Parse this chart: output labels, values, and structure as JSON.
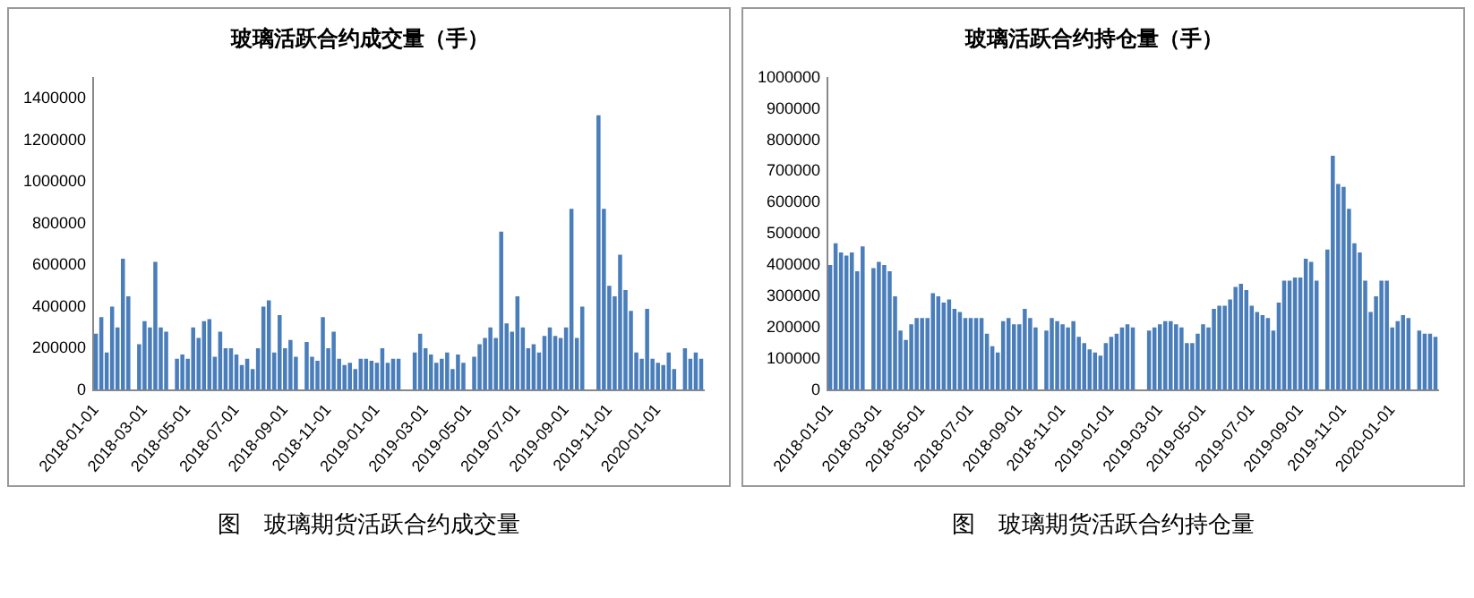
{
  "chart_data": [
    {
      "type": "bar",
      "title": "玻璃活跃合约成交量（手）",
      "color": "#4a7ebb",
      "ylim": [
        0,
        1500000
      ],
      "yticks": [
        0,
        200000,
        400000,
        600000,
        800000,
        1000000,
        1200000,
        1400000
      ],
      "annotations": [
        "图　玻璃期货活跃合约成交量"
      ],
      "categories": [
        "2018-01-01",
        null,
        null,
        null,
        null,
        null,
        null,
        null,
        null,
        "2018-03-01",
        null,
        null,
        null,
        null,
        null,
        null,
        null,
        "2018-05-01",
        null,
        null,
        null,
        null,
        null,
        null,
        null,
        null,
        "2018-07-01",
        null,
        null,
        null,
        null,
        null,
        null,
        null,
        null,
        "2018-09-01",
        null,
        null,
        null,
        null,
        null,
        null,
        null,
        "2018-11-01",
        null,
        null,
        null,
        null,
        null,
        null,
        null,
        null,
        "2019-01-01",
        null,
        null,
        null,
        null,
        null,
        null,
        null,
        null,
        "2019-03-01",
        null,
        null,
        null,
        null,
        null,
        null,
        null,
        "2019-05-01",
        null,
        null,
        null,
        null,
        null,
        null,
        null,
        null,
        "2019-07-01",
        null,
        null,
        null,
        null,
        null,
        null,
        null,
        null,
        "2019-09-01",
        null,
        null,
        null,
        null,
        null,
        null,
        null,
        "2019-11-01",
        null,
        null,
        null,
        null,
        null,
        null,
        null,
        null,
        "2020-01-01",
        null,
        null,
        null,
        null,
        null,
        null,
        null,
        null
      ],
      "values": [
        270000,
        350000,
        180000,
        400000,
        300000,
        630000,
        450000,
        null,
        220000,
        330000,
        300000,
        615000,
        300000,
        280000,
        null,
        150000,
        170000,
        150000,
        300000,
        250000,
        330000,
        340000,
        160000,
        280000,
        200000,
        200000,
        170000,
        120000,
        150000,
        100000,
        200000,
        400000,
        430000,
        180000,
        360000,
        200000,
        240000,
        160000,
        null,
        230000,
        160000,
        140000,
        350000,
        200000,
        280000,
        150000,
        120000,
        130000,
        100000,
        150000,
        150000,
        140000,
        130000,
        200000,
        130000,
        150000,
        150000,
        null,
        null,
        180000,
        270000,
        200000,
        170000,
        130000,
        150000,
        180000,
        100000,
        170000,
        130000,
        null,
        160000,
        220000,
        250000,
        300000,
        250000,
        760000,
        320000,
        280000,
        450000,
        300000,
        200000,
        220000,
        180000,
        260000,
        300000,
        260000,
        250000,
        300000,
        870000,
        250000,
        400000,
        null,
        null,
        1320000,
        870000,
        500000,
        450000,
        650000,
        480000,
        380000,
        180000,
        150000,
        390000,
        150000,
        130000,
        120000,
        180000,
        100000,
        null,
        200000,
        150000,
        180000,
        150000
      ]
    },
    {
      "type": "bar",
      "title": "玻璃活跃合约持仓量（手）",
      "color": "#4a7ebb",
      "ylim": [
        0,
        1000000
      ],
      "yticks": [
        0,
        100000,
        200000,
        300000,
        400000,
        500000,
        600000,
        700000,
        800000,
        900000,
        1000000
      ],
      "annotations": [
        "图　玻璃期货活跃合约持仓量"
      ],
      "categories": [
        "2018-01-01",
        null,
        null,
        null,
        null,
        null,
        null,
        null,
        null,
        "2018-03-01",
        null,
        null,
        null,
        null,
        null,
        null,
        null,
        "2018-05-01",
        null,
        null,
        null,
        null,
        null,
        null,
        null,
        null,
        "2018-07-01",
        null,
        null,
        null,
        null,
        null,
        null,
        null,
        null,
        "2018-09-01",
        null,
        null,
        null,
        null,
        null,
        null,
        null,
        "2018-11-01",
        null,
        null,
        null,
        null,
        null,
        null,
        null,
        null,
        "2019-01-01",
        null,
        null,
        null,
        null,
        null,
        null,
        null,
        null,
        "2019-03-01",
        null,
        null,
        null,
        null,
        null,
        null,
        null,
        "2019-05-01",
        null,
        null,
        null,
        null,
        null,
        null,
        null,
        null,
        "2019-07-01",
        null,
        null,
        null,
        null,
        null,
        null,
        null,
        null,
        "2019-09-01",
        null,
        null,
        null,
        null,
        null,
        null,
        null,
        "2019-11-01",
        null,
        null,
        null,
        null,
        null,
        null,
        null,
        null,
        "2020-01-01",
        null,
        null,
        null,
        null,
        null,
        null,
        null,
        null
      ],
      "values": [
        400000,
        470000,
        440000,
        430000,
        440000,
        380000,
        460000,
        null,
        390000,
        410000,
        400000,
        380000,
        300000,
        190000,
        160000,
        210000,
        230000,
        230000,
        230000,
        310000,
        300000,
        280000,
        290000,
        260000,
        250000,
        230000,
        230000,
        230000,
        230000,
        180000,
        140000,
        120000,
        220000,
        230000,
        210000,
        210000,
        260000,
        230000,
        200000,
        null,
        190000,
        230000,
        220000,
        210000,
        200000,
        220000,
        170000,
        150000,
        130000,
        120000,
        110000,
        150000,
        170000,
        180000,
        200000,
        210000,
        200000,
        null,
        null,
        190000,
        200000,
        210000,
        220000,
        220000,
        210000,
        200000,
        150000,
        150000,
        180000,
        210000,
        200000,
        260000,
        270000,
        270000,
        290000,
        330000,
        340000,
        320000,
        270000,
        250000,
        240000,
        230000,
        190000,
        280000,
        350000,
        350000,
        360000,
        360000,
        420000,
        410000,
        350000,
        null,
        450000,
        750000,
        660000,
        650000,
        580000,
        470000,
        440000,
        350000,
        250000,
        300000,
        350000,
        350000,
        200000,
        220000,
        240000,
        230000,
        null,
        190000,
        180000,
        180000,
        170000
      ]
    }
  ]
}
